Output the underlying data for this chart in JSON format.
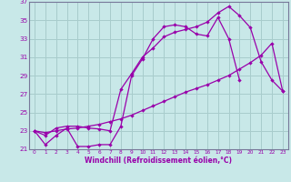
{
  "xlabel": "Windchill (Refroidissement éolien,°C)",
  "bg_color": "#c8e8e8",
  "grid_color": "#a8cccc",
  "line_color": "#9900aa",
  "xlim": [
    -0.5,
    23.5
  ],
  "ylim": [
    21,
    37
  ],
  "xticks": [
    0,
    1,
    2,
    3,
    4,
    5,
    6,
    7,
    8,
    9,
    10,
    11,
    12,
    13,
    14,
    15,
    16,
    17,
    18,
    19,
    20,
    21,
    22,
    23
  ],
  "yticks": [
    21,
    23,
    25,
    27,
    29,
    31,
    33,
    35,
    37
  ],
  "series": [
    {
      "x": [
        0,
        1,
        2,
        3,
        4,
        5,
        6,
        7,
        8,
        9,
        10,
        11,
        12,
        13,
        14,
        15,
        16,
        17,
        18,
        19
      ],
      "y": [
        23.0,
        21.5,
        22.5,
        23.3,
        21.3,
        21.3,
        21.5,
        21.5,
        23.5,
        29.0,
        30.8,
        33.0,
        34.3,
        34.5,
        34.3,
        33.5,
        33.3,
        35.3,
        33.0,
        28.5
      ]
    },
    {
      "x": [
        0,
        1,
        2,
        3,
        4,
        5,
        6,
        7,
        8,
        9,
        10,
        11,
        12,
        13,
        14,
        15,
        16,
        17,
        18,
        19,
        20,
        21,
        22,
        23
      ],
      "y": [
        23.0,
        22.5,
        23.3,
        23.5,
        23.5,
        23.3,
        23.2,
        23.0,
        27.5,
        29.2,
        31.0,
        32.0,
        33.2,
        33.7,
        34.0,
        34.3,
        34.8,
        35.8,
        36.5,
        35.5,
        34.2,
        30.5,
        28.5,
        27.3
      ]
    },
    {
      "x": [
        0,
        1,
        2,
        3,
        4,
        5,
        6,
        7,
        8,
        9,
        10,
        11,
        12,
        13,
        14,
        15,
        16,
        17,
        18,
        19,
        20,
        21,
        22,
        23
      ],
      "y": [
        23.0,
        22.8,
        23.0,
        23.2,
        23.3,
        23.5,
        23.7,
        24.0,
        24.3,
        24.7,
        25.2,
        25.7,
        26.2,
        26.7,
        27.2,
        27.6,
        28.0,
        28.5,
        29.0,
        29.7,
        30.4,
        31.2,
        32.5,
        27.3
      ]
    }
  ]
}
